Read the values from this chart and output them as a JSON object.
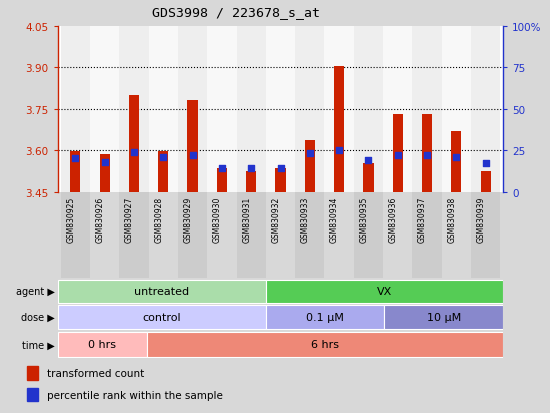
{
  "title": "GDS3998 / 223678_s_at",
  "samples": [
    "GSM830925",
    "GSM830926",
    "GSM830927",
    "GSM830928",
    "GSM830929",
    "GSM830930",
    "GSM830931",
    "GSM830932",
    "GSM830933",
    "GSM830934",
    "GSM830935",
    "GSM830936",
    "GSM830937",
    "GSM830938",
    "GSM830939"
  ],
  "transformed_count": [
    3.595,
    3.585,
    3.8,
    3.595,
    3.78,
    3.535,
    3.525,
    3.535,
    3.635,
    3.905,
    3.555,
    3.73,
    3.73,
    3.67,
    3.525
  ],
  "percentile_rank": [
    20,
    18,
    24,
    21,
    22,
    14,
    14,
    14,
    23,
    25,
    19,
    22,
    22,
    21,
    17
  ],
  "ymin": 3.45,
  "ymax": 4.05,
  "yticks_left": [
    3.45,
    3.6,
    3.75,
    3.9,
    4.05
  ],
  "gridlines": [
    3.6,
    3.75,
    3.9
  ],
  "right_yticks_pct": [
    0,
    25,
    50,
    75,
    100
  ],
  "right_ylabels": [
    "0",
    "25",
    "50",
    "75",
    "100%"
  ],
  "bar_color": "#cc2200",
  "dot_color": "#2233cc",
  "bg_color": "#d8d8d8",
  "plot_bg": "#ffffff",
  "xtick_bg_even": "#cccccc",
  "xtick_bg_odd": "#dddddd",
  "agent_untreated_color": "#aaddaa",
  "agent_vx_color": "#55cc55",
  "dose_control_color": "#ccccff",
  "dose_01_color": "#aaaaee",
  "dose_10_color": "#8888cc",
  "time_0hrs_color": "#ffbbbb",
  "time_6hrs_color": "#ee8877"
}
